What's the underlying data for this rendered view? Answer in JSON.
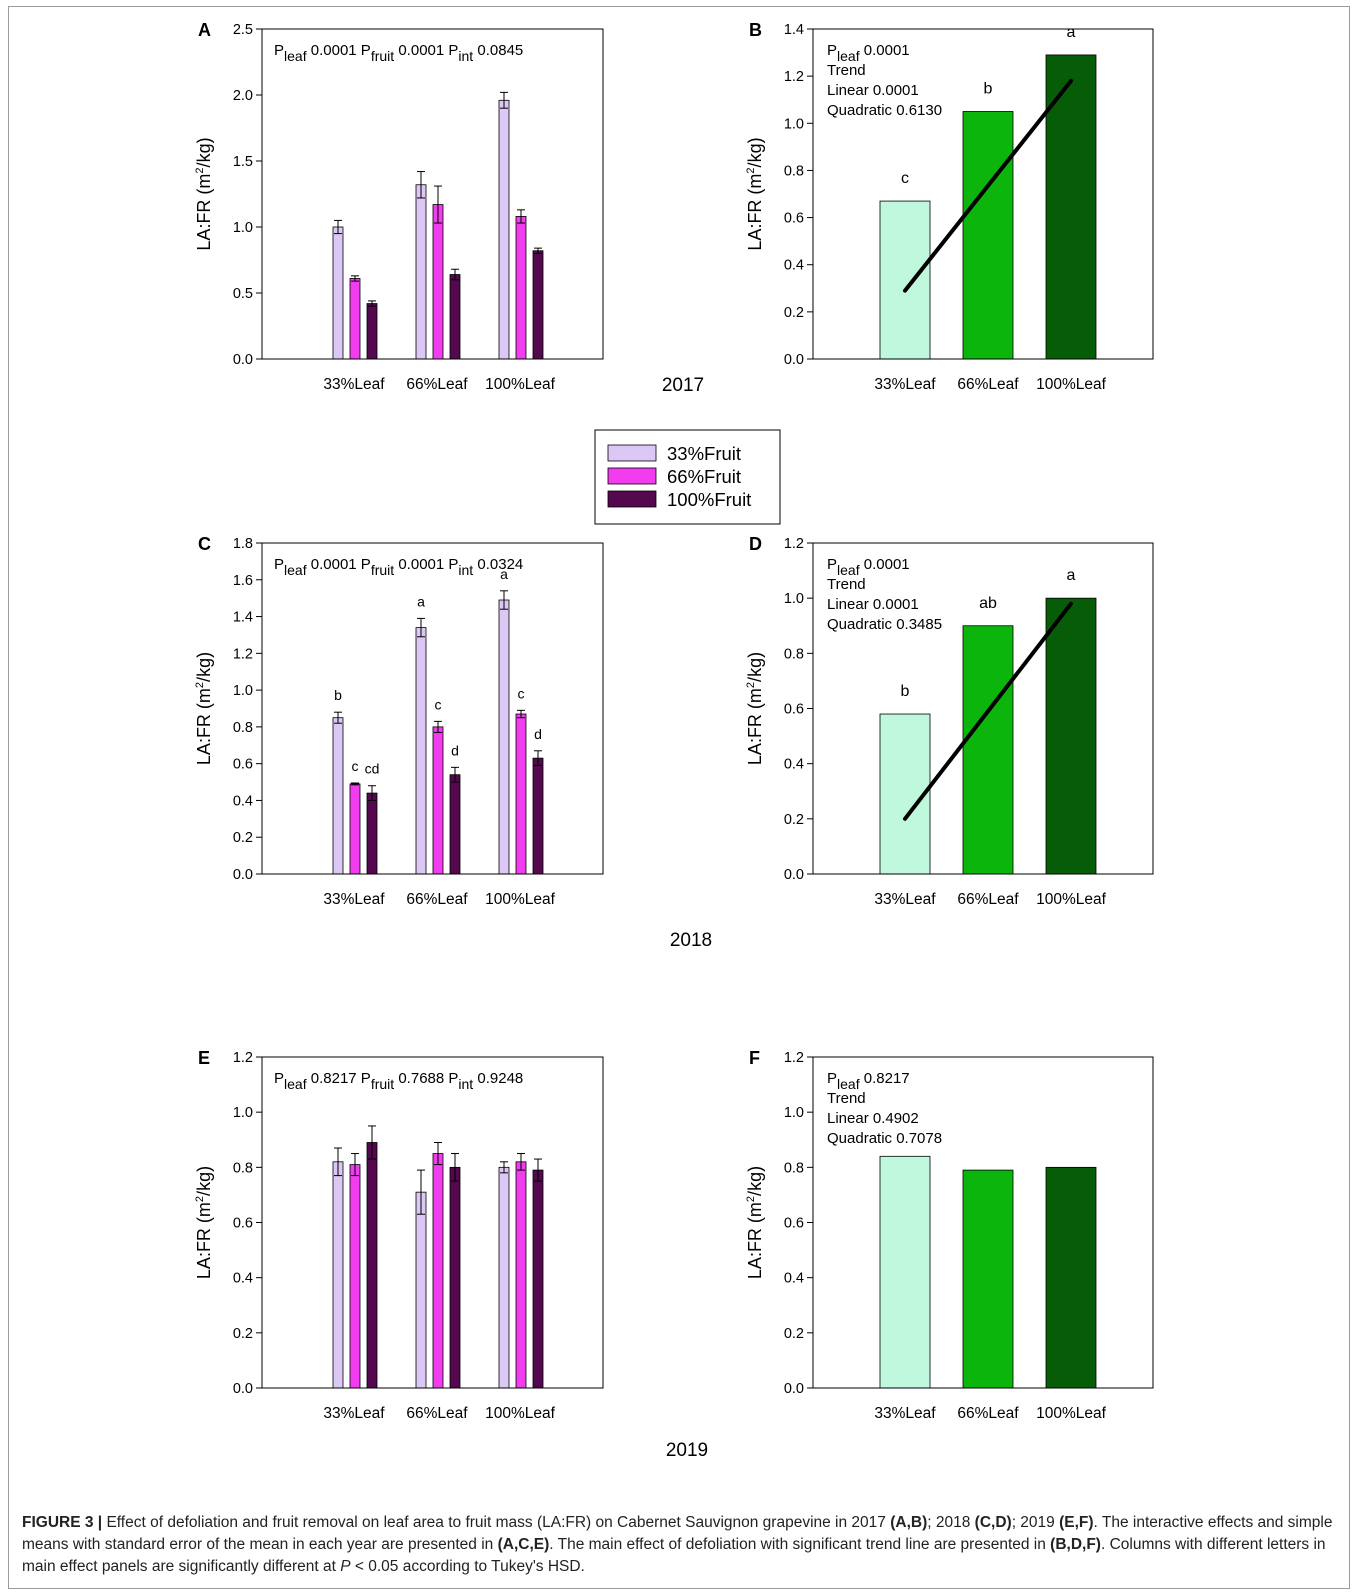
{
  "figure": {
    "caption_label": "FIGURE 3 |",
    "caption_parts": [
      {
        "t": " Effect of defoliation and fruit removal on leaf area to fruit mass (LA:FR) on Cabernet Sauvignon grapevine in 2017 "
      },
      {
        "t": "(A,B)",
        "b": true
      },
      {
        "t": "; 2018 "
      },
      {
        "t": "(C,D)",
        "b": true
      },
      {
        "t": "; 2019 "
      },
      {
        "t": "(E,F)",
        "b": true
      },
      {
        "t": ". The interactive effects and simple means with standard error of the mean in each year are presented in "
      },
      {
        "t": "(A,C,E)",
        "b": true
      },
      {
        "t": ". The main effect of defoliation with significant trend line are presented in "
      },
      {
        "t": "(B,D,F)",
        "b": true
      },
      {
        "t": ". Columns with different letters in main effect panels are significantly different at "
      },
      {
        "t": "P",
        "i": true
      },
      {
        "t": " < 0.05 according to Tukey's HSD."
      }
    ],
    "years": [
      "2017",
      "2018",
      "2019"
    ],
    "legend": [
      {
        "label": "33%Fruit",
        "color": "#dcc8f5"
      },
      {
        "label": "66%Fruit",
        "color": "#f23cf0"
      },
      {
        "label": "100%Fruit",
        "color": "#54094f"
      }
    ],
    "main_colors": [
      "#bff8dc",
      "#0cb50c",
      "#075d07"
    ]
  },
  "chart_data": [
    {
      "panel": "A",
      "type": "bar",
      "ylabel": "LA:FR (m²/kg)",
      "ylim": [
        0,
        2.5
      ],
      "yticks": [
        0.0,
        0.5,
        1.0,
        1.5,
        2.0,
        2.5
      ],
      "categories": [
        "33%Leaf",
        "66%Leaf",
        "100%Leaf"
      ],
      "series": [
        {
          "name": "33%Fruit",
          "values": [
            1.0,
            1.32,
            1.96
          ],
          "errors": [
            0.05,
            0.1,
            0.06
          ]
        },
        {
          "name": "66%Fruit",
          "values": [
            0.61,
            1.17,
            1.08
          ],
          "errors": [
            0.02,
            0.14,
            0.05
          ]
        },
        {
          "name": "100%Fruit",
          "values": [
            0.42,
            0.64,
            0.82
          ],
          "errors": [
            0.02,
            0.04,
            0.02
          ]
        }
      ],
      "stats": [
        {
          "p": "P",
          "sub": "leaf",
          "v": "0.0001"
        },
        {
          "p": "P",
          "sub": "fruit",
          "v": "0.0001"
        },
        {
          "p": "P",
          "sub": "int",
          "v": "0.0845"
        }
      ]
    },
    {
      "panel": "B",
      "type": "bar",
      "ylabel": "LA:FR (m²/kg)",
      "ylim": [
        0,
        1.4
      ],
      "yticks": [
        0.0,
        0.2,
        0.4,
        0.6,
        0.8,
        1.0,
        1.2,
        1.4
      ],
      "categories": [
        "33%Leaf",
        "66%Leaf",
        "100%Leaf"
      ],
      "values": [
        0.67,
        1.05,
        1.29
      ],
      "letters": [
        "c",
        "b",
        "a"
      ],
      "trendline": [
        0.29,
        1.18
      ],
      "stats_lines": [
        {
          "p": "P",
          "sub": "leaf",
          "v": "0.0001"
        },
        {
          "t": "Trend"
        },
        {
          "t": "Linear 0.0001"
        },
        {
          "t": "Quadratic 0.6130"
        }
      ]
    },
    {
      "panel": "C",
      "type": "bar",
      "ylabel": "LA:FR (m²/kg)",
      "ylim": [
        0,
        1.8
      ],
      "yticks": [
        0.0,
        0.2,
        0.4,
        0.6,
        0.8,
        1.0,
        1.2,
        1.4,
        1.6,
        1.8
      ],
      "categories": [
        "33%Leaf",
        "66%Leaf",
        "100%Leaf"
      ],
      "series": [
        {
          "name": "33%Fruit",
          "values": [
            0.85,
            1.34,
            1.49
          ],
          "errors": [
            0.03,
            0.05,
            0.05
          ],
          "letters": [
            "b",
            "a",
            "a"
          ]
        },
        {
          "name": "66%Fruit",
          "values": [
            0.49,
            0.8,
            0.87
          ],
          "errors": [
            0.005,
            0.03,
            0.02
          ],
          "letters": [
            "c",
            "c",
            "c"
          ]
        },
        {
          "name": "100%Fruit",
          "values": [
            0.44,
            0.54,
            0.63
          ],
          "errors": [
            0.04,
            0.04,
            0.04
          ],
          "letters": [
            "cd",
            "d",
            "d"
          ]
        }
      ],
      "stats": [
        {
          "p": "P",
          "sub": "leaf",
          "v": "0.0001"
        },
        {
          "p": "P",
          "sub": "fruit",
          "v": "0.0001"
        },
        {
          "p": "P",
          "sub": "int",
          "v": "0.0324"
        }
      ]
    },
    {
      "panel": "D",
      "type": "bar",
      "ylabel": "LA:FR (m²/kg)",
      "ylim": [
        0,
        1.2
      ],
      "yticks": [
        0.0,
        0.2,
        0.4,
        0.6,
        0.8,
        1.0,
        1.2
      ],
      "categories": [
        "33%Leaf",
        "66%Leaf",
        "100%Leaf"
      ],
      "values": [
        0.58,
        0.9,
        1.0
      ],
      "letters": [
        "b",
        "ab",
        "a"
      ],
      "trendline": [
        0.2,
        0.98
      ],
      "stats_lines": [
        {
          "p": "P",
          "sub": "leaf",
          "v": "0.0001"
        },
        {
          "t": "Trend"
        },
        {
          "t": "Linear 0.0001"
        },
        {
          "t": "Quadratic 0.3485"
        }
      ]
    },
    {
      "panel": "E",
      "type": "bar",
      "ylabel": "LA:FR (m²/kg)",
      "ylim": [
        0,
        1.2
      ],
      "yticks": [
        0.0,
        0.2,
        0.4,
        0.6,
        0.8,
        1.0,
        1.2
      ],
      "categories": [
        "33%Leaf",
        "66%Leaf",
        "100%Leaf"
      ],
      "series": [
        {
          "name": "33%Fruit",
          "values": [
            0.82,
            0.71,
            0.8
          ],
          "errors": [
            0.05,
            0.08,
            0.02
          ]
        },
        {
          "name": "66%Fruit",
          "values": [
            0.81,
            0.85,
            0.82
          ],
          "errors": [
            0.04,
            0.04,
            0.03
          ]
        },
        {
          "name": "100%Fruit",
          "values": [
            0.89,
            0.8,
            0.79
          ],
          "errors": [
            0.06,
            0.05,
            0.04
          ]
        }
      ],
      "stats": [
        {
          "p": "P",
          "sub": "leaf",
          "v": "0.8217"
        },
        {
          "p": "P",
          "sub": "fruit",
          "v": "0.7688"
        },
        {
          "p": "P",
          "sub": "int",
          "v": "0.9248"
        }
      ]
    },
    {
      "panel": "F",
      "type": "bar",
      "ylabel": "LA:FR (m²/kg)",
      "ylim": [
        0,
        1.2
      ],
      "yticks": [
        0.0,
        0.2,
        0.4,
        0.6,
        0.8,
        1.0,
        1.2
      ],
      "categories": [
        "33%Leaf",
        "66%Leaf",
        "100%Leaf"
      ],
      "values": [
        0.84,
        0.79,
        0.8
      ],
      "stats_lines": [
        {
          "p": "P",
          "sub": "leaf",
          "v": "0.8217"
        },
        {
          "t": "Trend"
        },
        {
          "t": "Linear 0.4902"
        },
        {
          "t": "Quadratic 0.7078"
        }
      ]
    }
  ]
}
